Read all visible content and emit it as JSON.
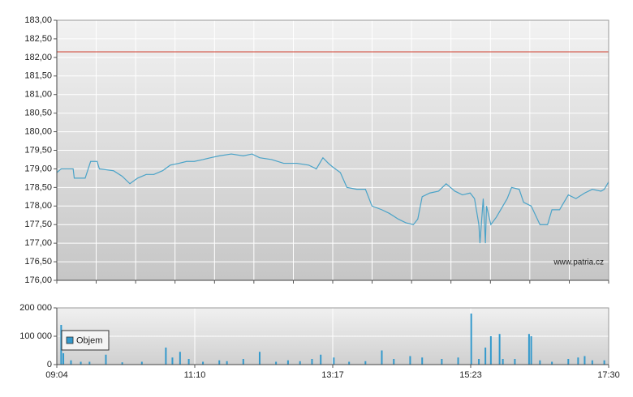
{
  "chart_data": [
    {
      "type": "line",
      "x": [
        544,
        548,
        559,
        560,
        570,
        575,
        581,
        583,
        596,
        604,
        611,
        618,
        626,
        633,
        641,
        648,
        656,
        663,
        670,
        678,
        685,
        693,
        704,
        715,
        723,
        730,
        741,
        752,
        764,
        775,
        782,
        788,
        793,
        797,
        804,
        810,
        819,
        827,
        833,
        842,
        849,
        857,
        864,
        871,
        875,
        879,
        886,
        894,
        901,
        909,
        916,
        923,
        927,
        931,
        932,
        935,
        937,
        938,
        942,
        947,
        953,
        957,
        961,
        968,
        972,
        979,
        987,
        994,
        998,
        1005,
        1013,
        1020,
        1028,
        1035,
        1043,
        1046,
        1050
      ],
      "values": [
        178.9,
        179.0,
        179.0,
        178.75,
        178.75,
        179.2,
        179.2,
        179.0,
        178.95,
        178.8,
        178.6,
        178.75,
        178.85,
        178.85,
        178.95,
        179.1,
        179.15,
        179.2,
        179.2,
        179.25,
        179.3,
        179.35,
        179.4,
        179.35,
        179.4,
        179.3,
        179.25,
        179.15,
        179.15,
        179.1,
        179.0,
        179.3,
        179.15,
        179.05,
        178.9,
        178.5,
        178.45,
        178.45,
        178.0,
        177.9,
        177.8,
        177.65,
        177.55,
        177.5,
        177.65,
        178.25,
        178.35,
        178.4,
        178.6,
        178.4,
        178.3,
        178.35,
        178.2,
        177.5,
        177.0,
        178.2,
        177.0,
        178.0,
        177.5,
        177.7,
        178.0,
        178.2,
        178.5,
        178.45,
        178.1,
        178.0,
        177.5,
        177.5,
        177.9,
        177.9,
        178.3,
        178.2,
        178.35,
        178.45,
        178.4,
        178.45,
        178.65
      ],
      "color": "#4aa3c8",
      "xlim": [
        544,
        1050
      ],
      "xgrid": [
        544,
        580.1,
        616.3,
        652.4,
        688.6,
        724.7,
        760.9,
        797,
        833.1,
        869.3,
        905.4,
        941.6,
        977.7,
        1013.9,
        1050
      ],
      "ylim": [
        176,
        183
      ],
      "yticks": [
        {
          "value": 176,
          "label": "176,00"
        },
        {
          "value": 176.5,
          "label": "176,50"
        },
        {
          "value": 177,
          "label": "177,00"
        },
        {
          "value": 177.5,
          "label": "177,50"
        },
        {
          "value": 178,
          "label": "178,00"
        },
        {
          "value": 178.5,
          "label": "178,50"
        },
        {
          "value": 179,
          "label": "179,00"
        },
        {
          "value": 179.5,
          "label": "179,50"
        },
        {
          "value": 180,
          "label": "180,00"
        },
        {
          "value": 180.5,
          "label": "180,50"
        },
        {
          "value": 181,
          "label": "181,00"
        },
        {
          "value": 181.5,
          "label": "181,50"
        },
        {
          "value": 182,
          "label": "182,00"
        },
        {
          "value": 182.5,
          "label": "182,50"
        },
        {
          "value": 183,
          "label": "183,00"
        }
      ],
      "reference_line": {
        "value": 182.15,
        "color": "#d04030"
      },
      "annotation": "www.patria.cz",
      "grid": true
    },
    {
      "type": "bar",
      "x": [
        548,
        550,
        557,
        566,
        574,
        589,
        604,
        622,
        644,
        650,
        657,
        665,
        678,
        693,
        700,
        715,
        730,
        745,
        756,
        767,
        778,
        786,
        798,
        812,
        827,
        842,
        853,
        868,
        879,
        897,
        912,
        924,
        931,
        937,
        942,
        950,
        953,
        964,
        977,
        979,
        987,
        998,
        1013,
        1022,
        1028,
        1035,
        1046
      ],
      "series": [
        {
          "name": "Objem",
          "color": "#3399cc",
          "values": [
            140000,
            40000,
            15000,
            10000,
            10000,
            35000,
            8000,
            10000,
            60000,
            25000,
            45000,
            20000,
            10000,
            15000,
            12000,
            20000,
            45000,
            10000,
            15000,
            12000,
            20000,
            35000,
            25000,
            10000,
            12000,
            50000,
            20000,
            30000,
            25000,
            20000,
            25000,
            180000,
            20000,
            60000,
            100000,
            108000,
            20000,
            20000,
            108000,
            100000,
            15000,
            10000,
            20000,
            25000,
            30000,
            15000,
            15000
          ]
        }
      ],
      "xlim": [
        544,
        1050
      ],
      "xticks": [
        {
          "value": 544,
          "label": "09:04"
        },
        {
          "value": 670.5,
          "label": "11:10"
        },
        {
          "value": 797,
          "label": "13:17"
        },
        {
          "value": 923.5,
          "label": "15:23"
        },
        {
          "value": 1050,
          "label": "17:30"
        }
      ],
      "ylim": [
        0,
        200000
      ],
      "yticks": [
        0,
        {
          "value": 100000,
          "label": "100 000"
        },
        {
          "value": 200000,
          "label": "200 000"
        }
      ],
      "legend": "upper left",
      "grid": true
    }
  ]
}
